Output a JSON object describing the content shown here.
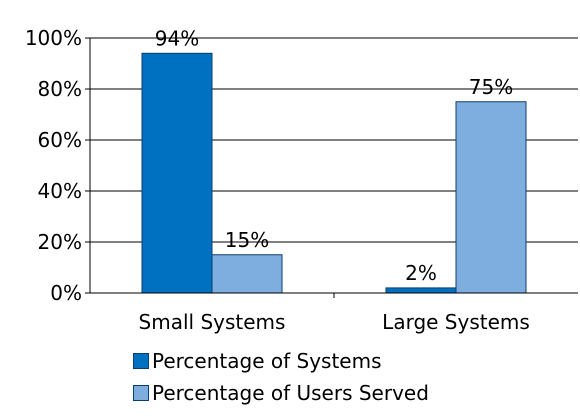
{
  "chart_data": {
    "type": "bar",
    "categories": [
      "Small Systems",
      "Large Systems"
    ],
    "series": [
      {
        "name": "Percentage of Systems",
        "values": [
          94,
          2
        ],
        "color": "#0070c0"
      },
      {
        "name": "Percentage of Users Served",
        "values": [
          15,
          75
        ],
        "color": "#7eaedf"
      }
    ],
    "data_labels": [
      [
        "94%",
        "15%"
      ],
      [
        "2%",
        "75%"
      ]
    ],
    "ylim": [
      0,
      100
    ],
    "yticks": [
      0,
      20,
      40,
      60,
      80,
      100
    ],
    "ytick_labels": [
      "0%",
      "20%",
      "40%",
      "60%",
      "80%",
      "100%"
    ],
    "grid": true,
    "legend_position": "bottom"
  }
}
